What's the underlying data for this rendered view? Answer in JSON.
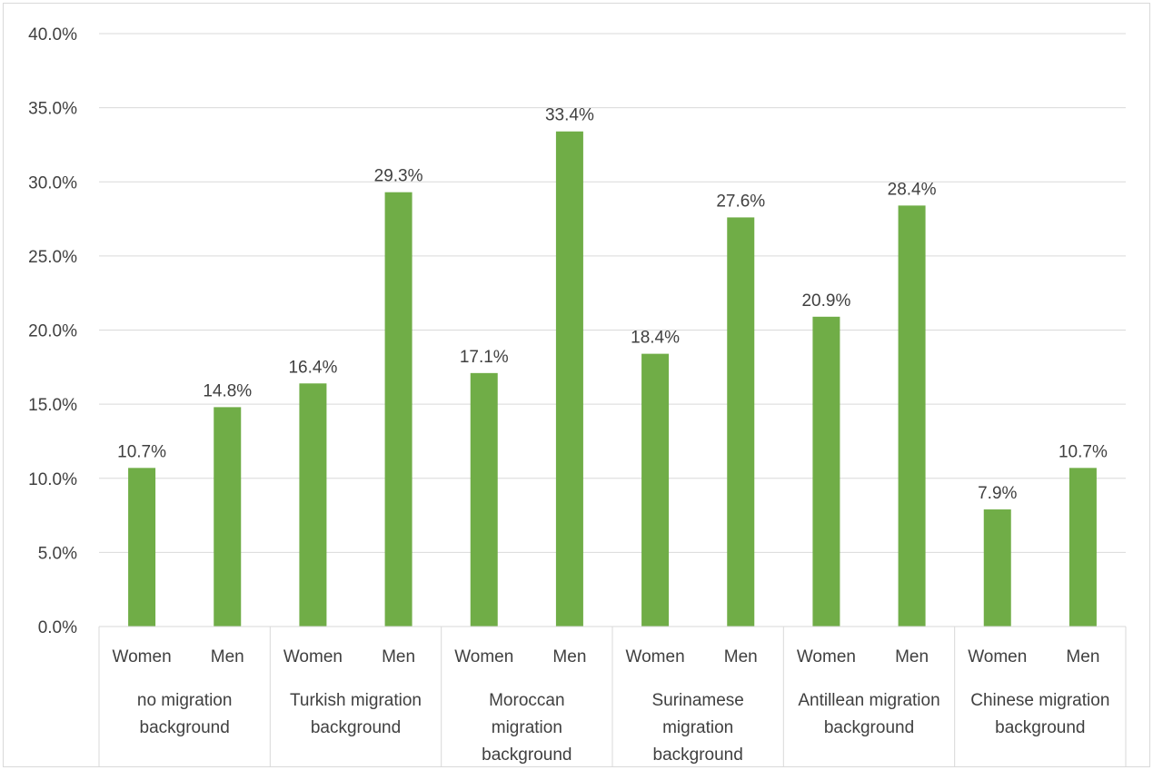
{
  "chart_data": {
    "type": "bar",
    "title": "",
    "xlabel": "",
    "ylabel": "",
    "ylim": [
      0,
      40
    ],
    "y_ticks": [
      "0.0%",
      "5.0%",
      "10.0%",
      "15.0%",
      "20.0%",
      "25.0%",
      "30.0%",
      "35.0%",
      "40.0%"
    ],
    "grid": true,
    "legend": "none",
    "bar_color": "#70ad47",
    "groups": [
      {
        "label": [
          "no migration",
          "background"
        ],
        "categories": [
          "Women",
          "Men"
        ],
        "values": [
          10.7,
          14.8
        ],
        "value_labels": [
          "10.7%",
          "14.8%"
        ]
      },
      {
        "label": [
          "Turkish migration",
          "background"
        ],
        "categories": [
          "Women",
          "Men"
        ],
        "values": [
          16.4,
          29.3
        ],
        "value_labels": [
          "16.4%",
          "29.3%"
        ]
      },
      {
        "label": [
          "Moroccan",
          "migration",
          "background"
        ],
        "categories": [
          "Women",
          "Men"
        ],
        "values": [
          17.1,
          33.4
        ],
        "value_labels": [
          "17.1%",
          "33.4%"
        ]
      },
      {
        "label": [
          "Surinamese",
          "migration",
          "background"
        ],
        "categories": [
          "Women",
          "Men"
        ],
        "values": [
          18.4,
          27.6
        ],
        "value_labels": [
          "18.4%",
          "27.6%"
        ]
      },
      {
        "label": [
          "Antillean migration",
          "background"
        ],
        "categories": [
          "Women",
          "Men"
        ],
        "values": [
          20.9,
          28.4
        ],
        "value_labels": [
          "20.9%",
          "28.4%"
        ]
      },
      {
        "label": [
          "Chinese migration",
          "background"
        ],
        "categories": [
          "Women",
          "Men"
        ],
        "values": [
          7.9,
          10.7
        ],
        "value_labels": [
          "7.9%",
          "10.7%"
        ]
      }
    ]
  }
}
